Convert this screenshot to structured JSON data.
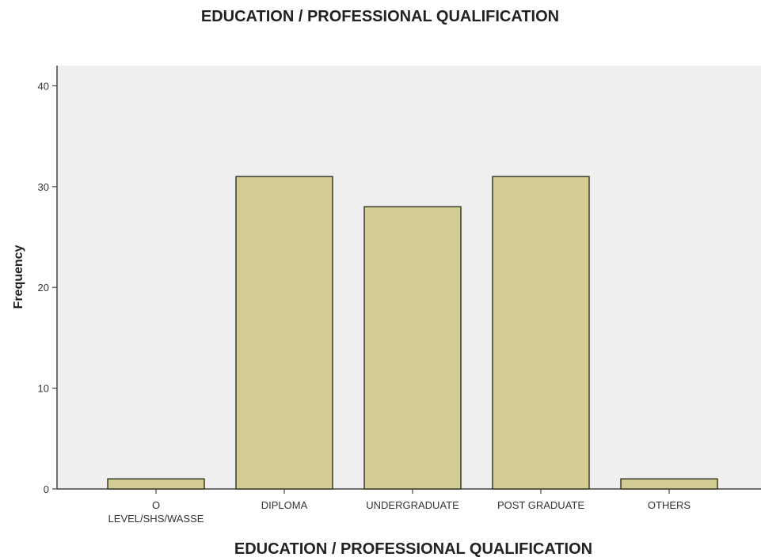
{
  "chart_data": {
    "type": "bar",
    "title": "EDUCATION / PROFESSIONAL QUALIFICATION",
    "xlabel": "EDUCATION / PROFESSIONAL QUALIFICATION",
    "ylabel": "Frequency",
    "categories": [
      [
        "O",
        "LEVEL/SHS/WASSE"
      ],
      [
        "DIPLOMA"
      ],
      [
        "UNDERGRADUATE"
      ],
      [
        "POST GRADUATE"
      ],
      [
        "OTHERS"
      ]
    ],
    "values": [
      1,
      31,
      28,
      31,
      1
    ],
    "ylim": [
      0,
      42
    ],
    "yticks": [
      "0",
      "10",
      "20",
      "30",
      "40"
    ],
    "grid": false,
    "colors": {
      "bar_fill": "#d3cc93",
      "bar_stroke": "#3a3a28",
      "plot_background": "#efefef",
      "axis": "#444444"
    }
  }
}
